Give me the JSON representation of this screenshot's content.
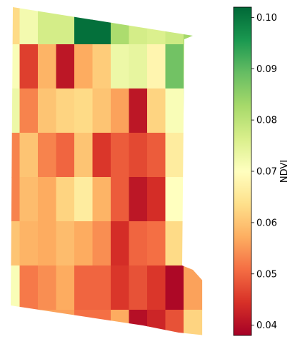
{
  "chart_data": {
    "type": "heatmap",
    "title": "",
    "xlabel": "",
    "ylabel": "",
    "colormap": "RdYlGn",
    "colorbar": {
      "label": "NDVI",
      "min": 0.038,
      "max": 0.102,
      "ticks": [
        {
          "value": 0.04,
          "label": "0.04"
        },
        {
          "value": 0.05,
          "label": "0.05"
        },
        {
          "value": 0.06,
          "label": "0.06"
        },
        {
          "value": 0.07,
          "label": "0.07"
        },
        {
          "value": 0.08,
          "label": "0.08"
        },
        {
          "value": 0.09,
          "label": "0.09"
        },
        {
          "value": 0.1,
          "label": "0.10"
        }
      ]
    },
    "grid": [
      [
        0.063,
        0.072,
        0.077,
        0.077,
        0.101,
        0.101,
        0.082,
        0.077,
        0.076,
        0.078,
        0.083
      ],
      [
        0.071,
        0.046,
        0.058,
        0.041,
        0.057,
        0.061,
        0.073,
        0.074,
        0.068,
        0.088,
        0.077
      ],
      [
        0.073,
        0.053,
        0.06,
        0.062,
        0.063,
        0.06,
        0.056,
        0.041,
        0.062,
        0.071,
        0.078
      ],
      [
        0.053,
        0.06,
        0.053,
        0.05,
        0.06,
        0.045,
        0.049,
        0.047,
        0.049,
        0.066,
        0.078
      ],
      [
        0.053,
        0.059,
        0.057,
        0.062,
        0.066,
        0.058,
        0.049,
        0.041,
        0.044,
        0.07,
        null
      ],
      [
        0.06,
        0.058,
        0.057,
        0.059,
        0.057,
        0.054,
        0.044,
        0.05,
        0.051,
        0.063,
        null
      ],
      [
        0.071,
        0.052,
        0.054,
        0.057,
        0.05,
        0.05,
        0.045,
        0.048,
        0.045,
        0.039,
        0.056
      ],
      [
        null,
        0.056,
        0.056,
        0.056,
        0.051,
        0.051,
        0.057,
        0.04,
        0.043,
        0.048,
        0.062
      ]
    ]
  }
}
